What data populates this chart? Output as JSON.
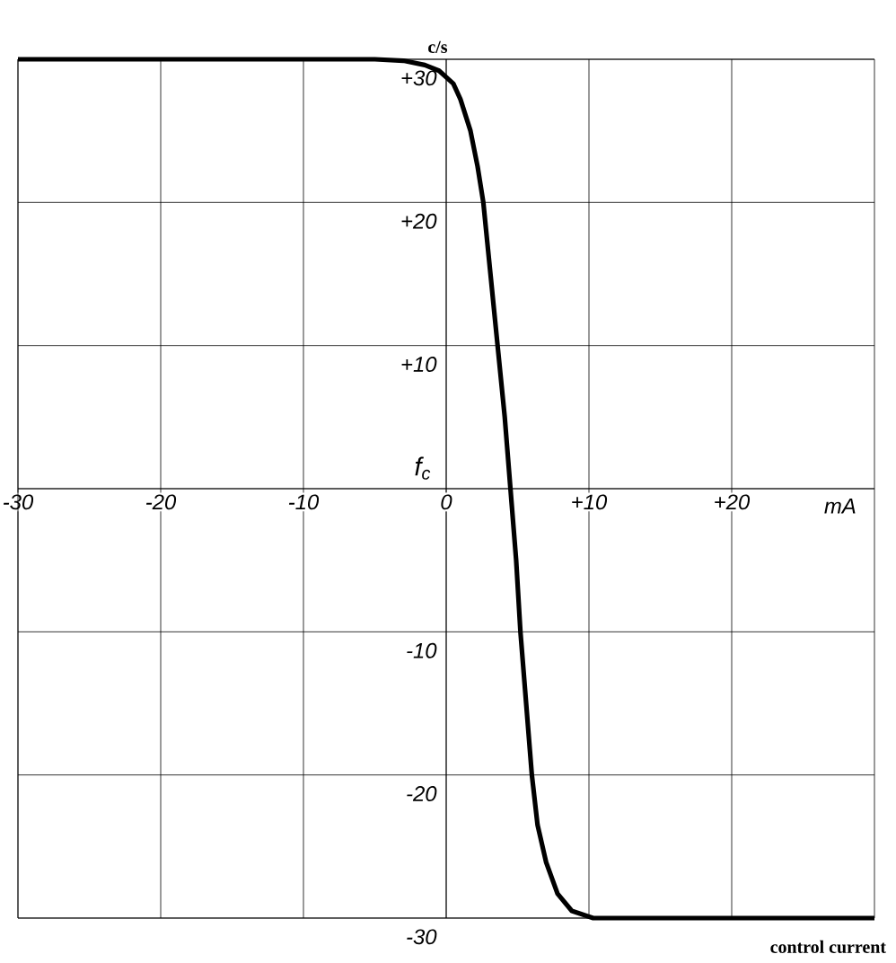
{
  "chart_data": {
    "type": "line",
    "ylabel": "c/s",
    "xlabel": "mA",
    "annotations": [
      "f$_{c}$",
      "control current"
    ],
    "x": [
      -30,
      -20,
      -10,
      -5,
      -3,
      -1.5,
      -0.5,
      0.5,
      1,
      1.7,
      2.2,
      2.6,
      3.1,
      3.6,
      4.1,
      4.5,
      4.9,
      5.2,
      5.6,
      6.0,
      6.4,
      7.0,
      7.8,
      8.8,
      10.3,
      20,
      30
    ],
    "values": [
      30,
      30,
      30,
      30,
      29.9,
      29.6,
      29.2,
      28.3,
      27.2,
      25,
      22.5,
      20,
      15,
      10,
      5,
      0,
      -5,
      -10,
      -15,
      -20,
      -23.5,
      -26.1,
      -28.3,
      -29.5,
      -30,
      -30,
      -30
    ],
    "color": "#000000",
    "xlim": [
      -30,
      30
    ],
    "ylim": [
      -30,
      30
    ],
    "xticks": [
      -30,
      -20,
      -10,
      0,
      {
        "value": 10,
        "label": "+10"
      },
      {
        "value": 20,
        "label": "+20"
      }
    ],
    "yticks": [
      -30,
      -20,
      -10,
      {
        "value": 0,
        "label": null
      },
      {
        "value": 10,
        "label": "+10"
      },
      {
        "value": 20,
        "label": "+20"
      },
      {
        "value": 30,
        "label": "+30"
      }
    ],
    "grid": true
  }
}
